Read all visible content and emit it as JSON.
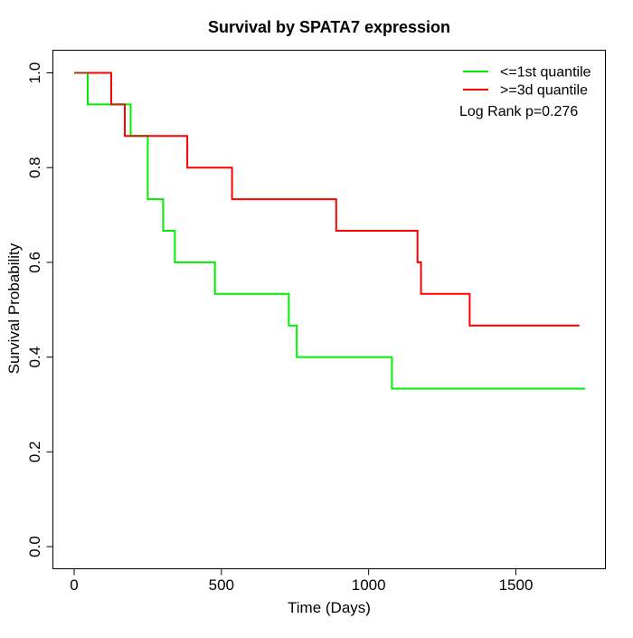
{
  "figure": {
    "title": "Survival by SPATA7 expression",
    "x_label": "Time (Days)",
    "y_label": "Survival Probability",
    "legend": {
      "items": [
        {
          "label": "<=1st quantile",
          "color": "#00ee00"
        },
        {
          "label": ">=3d quantile",
          "color": "#ff0000"
        }
      ],
      "annotation": "Log Rank p=0.276"
    }
  },
  "chart_data": {
    "type": "line",
    "subtype": "kaplan-meier-step",
    "title": "Survival by SPATA7 expression",
    "xlabel": "Time (Days)",
    "ylabel": "Survival Probability",
    "xlim": [
      -70,
      1805
    ],
    "ylim": [
      -0.045,
      1.048
    ],
    "x_ticks": [
      0,
      500,
      1000,
      1500
    ],
    "y_ticks": [
      0.0,
      0.2,
      0.4,
      0.6,
      0.8,
      1.0
    ],
    "grid": false,
    "legend_position": "top-right",
    "annotation": "Log Rank p=0.276",
    "overlap_color": "#a83a10",
    "series": [
      {
        "name": "<=1st quantile",
        "color": "#00ee00",
        "steps": [
          [
            0,
            1.0
          ],
          [
            46,
            0.9333
          ],
          [
            192,
            0.8667
          ],
          [
            250,
            0.7333
          ],
          [
            302,
            0.6667
          ],
          [
            342,
            0.6
          ],
          [
            478,
            0.5333
          ],
          [
            729,
            0.4667
          ],
          [
            756,
            0.4
          ],
          [
            1079,
            0.3333
          ]
        ],
        "end_time": 1735
      },
      {
        "name": ">=3d quantile",
        "color": "#ff0000",
        "steps": [
          [
            0,
            1.0
          ],
          [
            126,
            0.9333
          ],
          [
            172,
            0.8667
          ],
          [
            384,
            0.8
          ],
          [
            536,
            0.7333
          ],
          [
            890,
            0.6667
          ],
          [
            1166,
            0.6
          ],
          [
            1178,
            0.5333
          ],
          [
            1343,
            0.4667
          ]
        ],
        "end_time": 1716
      }
    ]
  }
}
